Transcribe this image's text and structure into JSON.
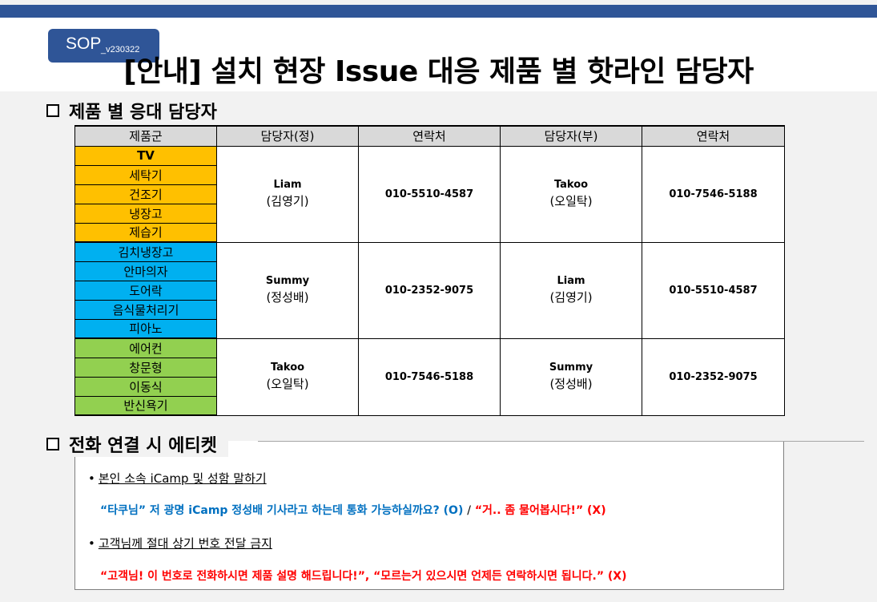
{
  "header": {
    "sop_label": "SOP",
    "sop_version": "_v230322",
    "title": "[안내] 설치 현장 Issue 대응 제품 별 핫라인 담당자"
  },
  "section1": {
    "heading": "제품 별 응대 담당자"
  },
  "table": {
    "headers": [
      "제품군",
      "담당자(정)",
      "연락처",
      "담당자(부)",
      "연락처"
    ],
    "groups": [
      {
        "color": "#ffc000",
        "products": [
          "TV",
          "세탁기",
          "건조기",
          "냉장고",
          "제습기"
        ],
        "primary_name": "Liam",
        "primary_kor": "(김영기)",
        "primary_phone": "010-5510-4587",
        "secondary_name": "Takoo",
        "secondary_kor": "(오일탁)",
        "secondary_phone": "010-7546-5188"
      },
      {
        "color": "#00b0f0",
        "products": [
          "김치냉장고",
          "안마의자",
          "도어락",
          "음식물처리기",
          "피아노"
        ],
        "primary_name": "Summy",
        "primary_kor": "(정성배)",
        "primary_phone": "010-2352-9075",
        "secondary_name": "Liam",
        "secondary_kor": "(김영기)",
        "secondary_phone": "010-5510-4587"
      },
      {
        "color": "#92d050",
        "products": [
          "에어컨",
          "창문형",
          "이동식",
          "반신욕기"
        ],
        "primary_name": "Takoo",
        "primary_kor": "(오일탁)",
        "primary_phone": "010-7546-5188",
        "secondary_name": "Summy",
        "secondary_kor": "(정성배)",
        "secondary_phone": "010-2352-9075"
      }
    ]
  },
  "section2": {
    "heading": "전화 연결 시 에티켓",
    "bullet1": "본인 소속 iCamp 및 성함 말하기",
    "example1_good": "“타쿠님” 저 광명 iCamp 정성배 기사라고 하는데 통화 가능하실까요? (O)",
    "example1_sep": "/",
    "example1_bad": "“거.. 좀 물어봅시다!” (X)",
    "bullet2": "고객님께 절대 상기 번호 전달 금지",
    "example2_bad": "“고객님! 이 번호로 전화하시면 제품 설명 해드립니다!”, “모르는거 있으시면 언제든 연락하시면 됩니다.” (X)"
  }
}
